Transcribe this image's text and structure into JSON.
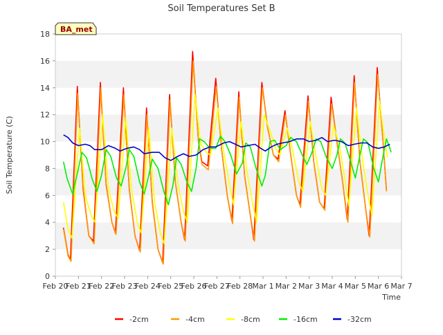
{
  "chart_data": {
    "type": "line",
    "title": "Soil Temperatures Set B",
    "xlabel": "Time",
    "ylabel": "Soil Temperature (C)",
    "badge": "BA_met",
    "ylim": [
      0,
      18
    ],
    "yticks": [
      0,
      2,
      4,
      6,
      8,
      10,
      12,
      14,
      16,
      18
    ],
    "xlim": [
      0,
      15
    ],
    "xticks": [
      {
        "x": 0,
        "label": "Feb 20"
      },
      {
        "x": 1,
        "label": "Feb 21"
      },
      {
        "x": 2,
        "label": "Feb 22"
      },
      {
        "x": 3,
        "label": "Feb 23"
      },
      {
        "x": 4,
        "label": "Feb 24"
      },
      {
        "x": 5,
        "label": "Feb 25"
      },
      {
        "x": 6,
        "label": "Feb 26"
      },
      {
        "x": 7,
        "label": "Feb 27"
      },
      {
        "x": 8,
        "label": "Feb 28"
      },
      {
        "x": 9,
        "label": "Mar 1"
      },
      {
        "x": 10,
        "label": "Mar 2"
      },
      {
        "x": 11,
        "label": "Mar 3"
      },
      {
        "x": 12,
        "label": "Mar 4"
      },
      {
        "x": 13,
        "label": "Mar 5"
      },
      {
        "x": 14,
        "label": "Mar 6"
      },
      {
        "x": 15,
        "label": "Mar 7"
      }
    ],
    "grid": "horizontal bands",
    "legend_position": "bottom",
    "series": [
      {
        "name": "-2cm",
        "color": "#ff0000",
        "points": [
          [
            0.35,
            3.6
          ],
          [
            0.55,
            1.6
          ],
          [
            0.65,
            1.2
          ],
          [
            0.95,
            14.1
          ],
          [
            1.2,
            6.5
          ],
          [
            1.45,
            3.0
          ],
          [
            1.65,
            2.6
          ],
          [
            1.95,
            14.4
          ],
          [
            2.2,
            6.8
          ],
          [
            2.45,
            4.0
          ],
          [
            2.6,
            3.2
          ],
          [
            2.95,
            14.0
          ],
          [
            3.2,
            6.5
          ],
          [
            3.45,
            3.0
          ],
          [
            3.65,
            1.9
          ],
          [
            3.95,
            12.5
          ],
          [
            4.2,
            5.5
          ],
          [
            4.45,
            2.0
          ],
          [
            4.65,
            1.0
          ],
          [
            4.95,
            13.5
          ],
          [
            5.2,
            7.0
          ],
          [
            5.45,
            4.0
          ],
          [
            5.6,
            2.7
          ],
          [
            5.95,
            16.7
          ],
          [
            6.2,
            10.0
          ],
          [
            6.35,
            8.5
          ],
          [
            6.6,
            8.2
          ],
          [
            6.95,
            14.7
          ],
          [
            7.2,
            9.5
          ],
          [
            7.45,
            6.0
          ],
          [
            7.65,
            4.1
          ],
          [
            7.95,
            13.7
          ],
          [
            8.2,
            7.5
          ],
          [
            8.45,
            4.5
          ],
          [
            8.6,
            2.7
          ],
          [
            8.95,
            14.4
          ],
          [
            9.2,
            11.0
          ],
          [
            9.45,
            9.0
          ],
          [
            9.65,
            8.7
          ],
          [
            9.95,
            12.3
          ],
          [
            10.2,
            9.0
          ],
          [
            10.45,
            6.0
          ],
          [
            10.6,
            5.3
          ],
          [
            10.95,
            13.4
          ],
          [
            11.2,
            8.5
          ],
          [
            11.45,
            5.5
          ],
          [
            11.65,
            5.0
          ],
          [
            11.95,
            13.3
          ],
          [
            12.2,
            10.0
          ],
          [
            12.45,
            7.0
          ],
          [
            12.65,
            4.2
          ],
          [
            12.95,
            14.9
          ],
          [
            13.2,
            8.5
          ],
          [
            13.45,
            5.0
          ],
          [
            13.6,
            3.0
          ],
          [
            13.95,
            15.5
          ],
          [
            14.2,
            10.0
          ],
          [
            14.35,
            6.4
          ]
        ]
      },
      {
        "name": "-4cm",
        "color": "#ff9900",
        "points": [
          [
            0.35,
            3.5
          ],
          [
            0.55,
            1.5
          ],
          [
            0.68,
            1.1
          ],
          [
            0.97,
            13.6
          ],
          [
            1.2,
            6.7
          ],
          [
            1.45,
            3.0
          ],
          [
            1.68,
            2.4
          ],
          [
            1.97,
            14.0
          ],
          [
            2.2,
            6.9
          ],
          [
            2.45,
            4.0
          ],
          [
            2.63,
            3.1
          ],
          [
            2.97,
            13.5
          ],
          [
            3.2,
            6.6
          ],
          [
            3.45,
            3.0
          ],
          [
            3.68,
            1.8
          ],
          [
            3.97,
            12.0
          ],
          [
            4.2,
            5.6
          ],
          [
            4.45,
            2.0
          ],
          [
            4.68,
            0.9
          ],
          [
            4.97,
            13.1
          ],
          [
            5.2,
            7.0
          ],
          [
            5.45,
            4.0
          ],
          [
            5.63,
            2.6
          ],
          [
            5.97,
            16.0
          ],
          [
            6.2,
            10.0
          ],
          [
            6.35,
            8.3
          ],
          [
            6.63,
            7.9
          ],
          [
            6.97,
            14.1
          ],
          [
            7.2,
            9.5
          ],
          [
            7.45,
            6.0
          ],
          [
            7.68,
            3.9
          ],
          [
            7.97,
            13.3
          ],
          [
            8.2,
            7.5
          ],
          [
            8.45,
            4.5
          ],
          [
            8.63,
            2.6
          ],
          [
            8.97,
            14.0
          ],
          [
            9.2,
            11.0
          ],
          [
            9.45,
            9.0
          ],
          [
            9.68,
            8.5
          ],
          [
            9.97,
            12.0
          ],
          [
            10.2,
            9.0
          ],
          [
            10.45,
            6.0
          ],
          [
            10.63,
            5.1
          ],
          [
            10.97,
            13.0
          ],
          [
            11.2,
            8.5
          ],
          [
            11.45,
            5.5
          ],
          [
            11.68,
            4.9
          ],
          [
            11.97,
            12.8
          ],
          [
            12.2,
            10.0
          ],
          [
            12.45,
            7.0
          ],
          [
            12.68,
            4.0
          ],
          [
            12.97,
            14.4
          ],
          [
            13.2,
            8.5
          ],
          [
            13.45,
            5.0
          ],
          [
            13.63,
            2.9
          ],
          [
            13.97,
            15.0
          ],
          [
            14.2,
            10.0
          ],
          [
            14.35,
            6.3
          ]
        ]
      },
      {
        "name": "-8cm",
        "color": "#ffff00",
        "points": [
          [
            0.35,
            5.5
          ],
          [
            0.55,
            3.5
          ],
          [
            0.72,
            2.8
          ],
          [
            1.05,
            11.0
          ],
          [
            1.3,
            6.0
          ],
          [
            1.55,
            4.5
          ],
          [
            1.72,
            4.0
          ],
          [
            2.05,
            12.0
          ],
          [
            2.3,
            6.5
          ],
          [
            2.55,
            4.8
          ],
          [
            2.72,
            4.3
          ],
          [
            3.05,
            11.8
          ],
          [
            3.3,
            6.5
          ],
          [
            3.55,
            4.0
          ],
          [
            3.72,
            3.2
          ],
          [
            4.05,
            11.0
          ],
          [
            4.3,
            5.5
          ],
          [
            4.55,
            3.2
          ],
          [
            4.72,
            2.4
          ],
          [
            5.05,
            11.0
          ],
          [
            5.3,
            7.0
          ],
          [
            5.55,
            4.8
          ],
          [
            5.72,
            4.0
          ],
          [
            6.05,
            13.5
          ],
          [
            6.3,
            9.8
          ],
          [
            6.55,
            9.2
          ],
          [
            6.72,
            9.0
          ],
          [
            7.05,
            12.5
          ],
          [
            7.3,
            9.2
          ],
          [
            7.55,
            6.8
          ],
          [
            7.72,
            5.3
          ],
          [
            8.05,
            11.5
          ],
          [
            8.3,
            7.8
          ],
          [
            8.55,
            5.4
          ],
          [
            8.72,
            4.0
          ],
          [
            9.05,
            12.0
          ],
          [
            9.3,
            10.8
          ],
          [
            9.55,
            9.5
          ],
          [
            9.72,
            9.0
          ],
          [
            10.05,
            11.0
          ],
          [
            10.3,
            9.2
          ],
          [
            10.55,
            7.0
          ],
          [
            10.72,
            6.3
          ],
          [
            11.05,
            11.5
          ],
          [
            11.3,
            8.8
          ],
          [
            11.55,
            6.5
          ],
          [
            11.72,
            6.0
          ],
          [
            12.05,
            11.2
          ],
          [
            12.3,
            9.8
          ],
          [
            12.55,
            7.2
          ],
          [
            12.72,
            5.2
          ],
          [
            13.05,
            12.5
          ],
          [
            13.3,
            8.8
          ],
          [
            13.55,
            6.0
          ],
          [
            13.72,
            4.5
          ],
          [
            14.05,
            13.0
          ],
          [
            14.3,
            9.8
          ],
          [
            14.4,
            8.8
          ]
        ]
      },
      {
        "name": "-16cm",
        "color": "#00ee00",
        "points": [
          [
            0.35,
            8.5
          ],
          [
            0.5,
            7.3
          ],
          [
            0.75,
            6.1
          ],
          [
            1.0,
            8.0
          ],
          [
            1.15,
            9.2
          ],
          [
            1.35,
            8.8
          ],
          [
            1.6,
            7.2
          ],
          [
            1.8,
            6.3
          ],
          [
            2.0,
            7.5
          ],
          [
            2.2,
            9.4
          ],
          [
            2.4,
            8.9
          ],
          [
            2.65,
            7.3
          ],
          [
            2.85,
            6.7
          ],
          [
            3.05,
            8.0
          ],
          [
            3.2,
            9.4
          ],
          [
            3.4,
            8.9
          ],
          [
            3.65,
            7.0
          ],
          [
            3.85,
            6.1
          ],
          [
            4.05,
            7.5
          ],
          [
            4.2,
            8.7
          ],
          [
            4.45,
            8.0
          ],
          [
            4.7,
            6.3
          ],
          [
            4.9,
            5.3
          ],
          [
            5.1,
            6.8
          ],
          [
            5.25,
            8.8
          ],
          [
            5.45,
            8.3
          ],
          [
            5.7,
            7.0
          ],
          [
            5.9,
            6.3
          ],
          [
            6.1,
            8.0
          ],
          [
            6.25,
            10.2
          ],
          [
            6.45,
            10.0
          ],
          [
            6.7,
            9.5
          ],
          [
            6.95,
            9.5
          ],
          [
            7.15,
            10.4
          ],
          [
            7.35,
            10.0
          ],
          [
            7.6,
            9.0
          ],
          [
            7.85,
            7.6
          ],
          [
            8.1,
            8.4
          ],
          [
            8.25,
            9.9
          ],
          [
            8.45,
            9.6
          ],
          [
            8.7,
            8.0
          ],
          [
            8.95,
            6.7
          ],
          [
            9.1,
            7.5
          ],
          [
            9.3,
            10.0
          ],
          [
            9.5,
            10.1
          ],
          [
            9.75,
            9.4
          ],
          [
            10.0,
            9.7
          ],
          [
            10.2,
            10.3
          ],
          [
            10.45,
            10.0
          ],
          [
            10.7,
            9.0
          ],
          [
            10.9,
            8.3
          ],
          [
            11.1,
            9.1
          ],
          [
            11.3,
            10.2
          ],
          [
            11.5,
            10.0
          ],
          [
            11.75,
            8.8
          ],
          [
            12.0,
            8.0
          ],
          [
            12.2,
            9.0
          ],
          [
            12.35,
            10.2
          ],
          [
            12.55,
            9.9
          ],
          [
            12.8,
            8.5
          ],
          [
            13.0,
            7.3
          ],
          [
            13.2,
            9.0
          ],
          [
            13.35,
            10.2
          ],
          [
            13.55,
            9.9
          ],
          [
            13.8,
            8.0
          ],
          [
            14.0,
            7.0
          ],
          [
            14.2,
            8.9
          ],
          [
            14.35,
            10.2
          ],
          [
            14.5,
            9.5
          ],
          [
            14.55,
            9.2
          ]
        ]
      },
      {
        "name": "-32cm",
        "color": "#0000cc",
        "points": [
          [
            0.35,
            10.5
          ],
          [
            0.55,
            10.3
          ],
          [
            0.75,
            9.9
          ],
          [
            1.0,
            9.7
          ],
          [
            1.3,
            9.8
          ],
          [
            1.5,
            9.7
          ],
          [
            1.7,
            9.4
          ],
          [
            2.0,
            9.4
          ],
          [
            2.3,
            9.7
          ],
          [
            2.6,
            9.5
          ],
          [
            2.8,
            9.3
          ],
          [
            3.1,
            9.5
          ],
          [
            3.4,
            9.6
          ],
          [
            3.65,
            9.4
          ],
          [
            3.85,
            9.1
          ],
          [
            4.2,
            9.2
          ],
          [
            4.5,
            9.2
          ],
          [
            4.75,
            8.8
          ],
          [
            5.0,
            8.6
          ],
          [
            5.3,
            8.9
          ],
          [
            5.55,
            9.1
          ],
          [
            5.8,
            8.9
          ],
          [
            6.1,
            9.0
          ],
          [
            6.4,
            9.4
          ],
          [
            6.7,
            9.6
          ],
          [
            6.95,
            9.6
          ],
          [
            7.3,
            9.9
          ],
          [
            7.55,
            10.0
          ],
          [
            7.8,
            9.8
          ],
          [
            8.05,
            9.6
          ],
          [
            8.35,
            9.7
          ],
          [
            8.65,
            9.8
          ],
          [
            8.9,
            9.5
          ],
          [
            9.1,
            9.3
          ],
          [
            9.35,
            9.6
          ],
          [
            9.6,
            9.8
          ],
          [
            9.85,
            9.9
          ],
          [
            10.15,
            10.0
          ],
          [
            10.45,
            10.2
          ],
          [
            10.75,
            10.2
          ],
          [
            11.0,
            10.0
          ],
          [
            11.3,
            10.1
          ],
          [
            11.55,
            10.3
          ],
          [
            11.8,
            10.0
          ],
          [
            12.1,
            10.1
          ],
          [
            12.4,
            10.0
          ],
          [
            12.7,
            9.7
          ],
          [
            12.95,
            9.8
          ],
          [
            13.25,
            9.9
          ],
          [
            13.5,
            9.9
          ],
          [
            13.75,
            9.6
          ],
          [
            14.0,
            9.5
          ],
          [
            14.25,
            9.6
          ],
          [
            14.5,
            9.8
          ]
        ]
      }
    ]
  }
}
